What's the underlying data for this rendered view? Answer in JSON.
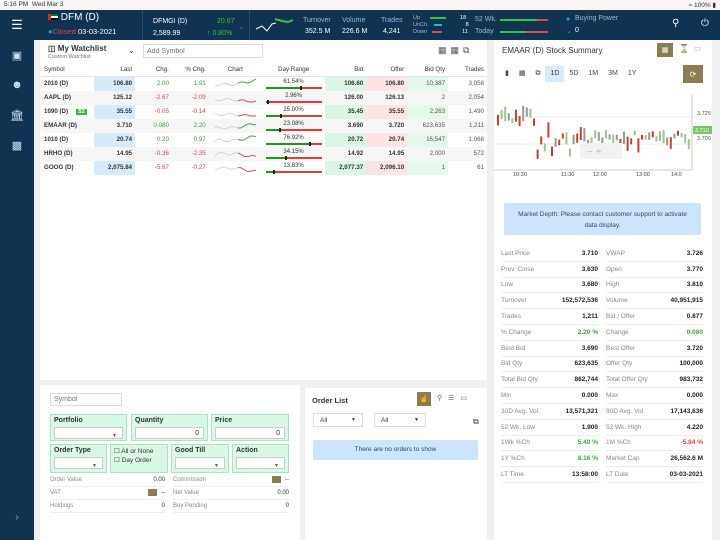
{
  "status": {
    "time": "5:16 PM",
    "date": "Wed Mar 3",
    "battery": "100%"
  },
  "topbar": {
    "exchange": "DFM (D)",
    "market_status": "Closed",
    "market_date": "03-03-2021",
    "index_name": "DFMGI (D)",
    "index_value": "2,589.99",
    "index_change": "20.67",
    "index_pct": "0.80%",
    "turnover_label": "Turnover",
    "turnover": "352.5 M",
    "volume_label": "Volume",
    "volume": "226.6 M",
    "trades_label": "Trades",
    "trades": "4,241",
    "up_label": "Up",
    "up": "18",
    "unch_label": "UnCh.",
    "unch": "8",
    "down_label": "Down",
    "down": "11",
    "wk52_label": "52 Wk.",
    "today_label": "Today",
    "wk52_pos": 0.78,
    "today_pos": 0.55,
    "bp_label": "Buying Power",
    "bp_value": "0"
  },
  "watchlist": {
    "title": "My Watchlist",
    "subtitle": "Custom Watchlist",
    "add_placeholder": "Add Symbol",
    "columns": [
      "Symbol",
      "Last",
      "Chg.",
      "% Chg.",
      "Chart",
      "Day Range",
      "Bid",
      "Offer",
      "Bid Qty",
      "Trades"
    ],
    "rows": [
      {
        "symbol": "2010 (D)",
        "badge": "",
        "last": "106.80",
        "chg": "2.00",
        "pct": "1.91",
        "range": "61.54%",
        "range_v": 61.54,
        "bid": "106.60",
        "offer": "106.80",
        "bidqty": "10,387",
        "trades": "3,058",
        "dir": "g"
      },
      {
        "symbol": "AAPL (D)",
        "badge": "",
        "last": "125.12",
        "chg": "-2.67",
        "pct": "-2.09",
        "range": "2.96%",
        "range_v": 2.96,
        "bid": "126.00",
        "offer": "126.13",
        "bidqty": "2",
        "trades": "2,054",
        "dir": "r"
      },
      {
        "symbol": "1090 (D)",
        "badge": "S2",
        "last": "35.55",
        "chg": "-0.05",
        "pct": "-0.14",
        "range": "25.00%",
        "range_v": 25,
        "bid": "35.45",
        "offer": "35.55",
        "bidqty": "2,263",
        "trades": "1,490",
        "dir": "r"
      },
      {
        "symbol": "EMAAR (D)",
        "badge": "",
        "last": "3.710",
        "chg": "0.080",
        "pct": "2.20",
        "range": "23.08%",
        "range_v": 23.08,
        "bid": "3.690",
        "offer": "3.720",
        "bidqty": "623,635",
        "trades": "1,211",
        "dir": "g"
      },
      {
        "symbol": "1010 (D)",
        "badge": "",
        "last": "20.74",
        "chg": "0.20",
        "pct": "0.97",
        "range": "76.92%",
        "range_v": 76.92,
        "bid": "20.72",
        "offer": "20.74",
        "bidqty": "16,547",
        "trades": "1,068",
        "dir": "g"
      },
      {
        "symbol": "HRHO (D)",
        "badge": "",
        "last": "14.95",
        "chg": "-0.36",
        "pct": "-2.35",
        "range": "34.15%",
        "range_v": 34.15,
        "bid": "14.92",
        "offer": "14.95",
        "bidqty": "2,000",
        "trades": "572",
        "dir": "r"
      },
      {
        "symbol": "GOOG (D)",
        "badge": "",
        "last": "2,075.84",
        "chg": "-5.67",
        "pct": "-0.27",
        "range": "13.83%",
        "range_v": 13.83,
        "bid": "2,077.37",
        "offer": "2,096.10",
        "bidqty": "1",
        "trades": "61",
        "dir": "r"
      }
    ]
  },
  "order": {
    "symbol_placeholder": "Symbol",
    "portfolio": "Portfolio",
    "quantity": "Quantity",
    "quantity_value": "0",
    "price": "Price",
    "price_value": "0",
    "order_type": "Order Type",
    "all_or_none": "All or None",
    "day_order": "Day Order",
    "good_till": "Good Till",
    "action": "Action",
    "rows": [
      [
        "Order Value",
        "0.00",
        "Commission",
        "--"
      ],
      [
        "VAT",
        "--",
        "Net Value",
        "0.00"
      ],
      [
        "Holdings",
        "0",
        "Buy Pending",
        "0"
      ]
    ]
  },
  "order_list": {
    "title": "Order List",
    "filter1": "All",
    "filter2": "All",
    "empty": "There are no orders to show"
  },
  "summary": {
    "title": "EMAAR (D) Stock Summary",
    "timeframes": [
      "1D",
      "5D",
      "1M",
      "3M",
      "1Y"
    ],
    "active_tf": "1D",
    "chart": {
      "y_ticks": [
        "3.725",
        "3.700"
      ],
      "x_ticks": [
        "10:30",
        "11:30",
        "12:00",
        "13:00",
        "14:0"
      ],
      "last_label": "3.710"
    },
    "depth_msg": "Market Depth: Please contact customer support to activate data display.",
    "stats": [
      [
        "Last Price",
        "3.710",
        "VWAP",
        "3.726"
      ],
      [
        "Prev. Close",
        "3.630",
        "Open",
        "3.770"
      ],
      [
        "Low",
        "3.680",
        "High",
        "3.810"
      ],
      [
        "Turnover",
        "152,572,536",
        "Volume",
        "40,951,915"
      ],
      [
        "Trades",
        "1,211",
        "Bid / Offer",
        "0.877"
      ],
      [
        "% Change",
        "2.20 %",
        "Change",
        "0.080"
      ],
      [
        "Best Bid",
        "3.690",
        "Best Offer",
        "3.720"
      ],
      [
        "Bid Qty",
        "623,635",
        "Offer Qty",
        "100,000"
      ],
      [
        "Total Bid Qty",
        "862,744",
        "Total Offer Qty",
        "983,732"
      ],
      [
        "Min",
        "0.000",
        "Max",
        "0.000"
      ],
      [
        "30D Avg. Vol.",
        "13,571,321",
        "90D Avg. Vol.",
        "17,143,636"
      ],
      [
        "52 Wk. Low",
        "1.900",
        "52 Wk. High",
        "4.220"
      ],
      [
        "1Wk %Ch",
        "5.40 %",
        "1M %Ch",
        "-5.84 %"
      ],
      [
        "1Y %Ch",
        "8.16 %",
        "Market Cap",
        "26,562.6 M"
      ],
      [
        "LT Time",
        "13:58:00",
        "LT Date",
        "03-03-2021"
      ]
    ],
    "stat_colors": {
      "5": [
        "#3aa53a",
        "#3aa53a"
      ],
      "12": [
        "#3aa53a",
        "#e04646"
      ],
      "13": [
        "#3aa53a",
        ""
      ]
    }
  },
  "colors": {
    "navy": "#0f3350",
    "green": "#3aa53a",
    "red": "#e04646",
    "olive": "#8a7d4f"
  }
}
